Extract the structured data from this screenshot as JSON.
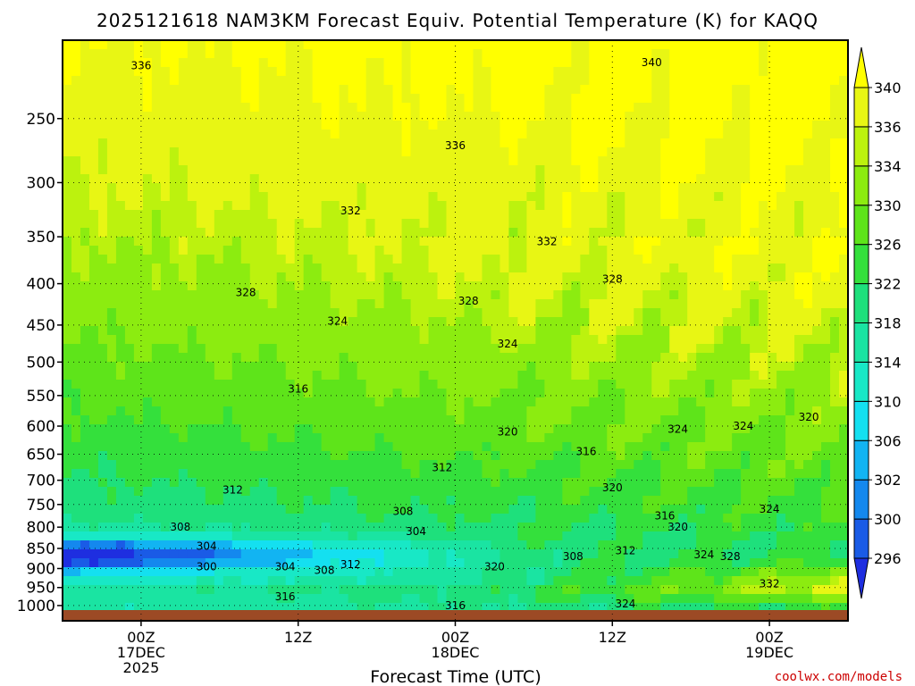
{
  "chart_data": {
    "type": "heatmap",
    "title": "2025121618 NAM3KM Forecast Equiv. Potential Temperature (K) for KAQQ",
    "xlabel": "Forecast Time (UTC)",
    "ylabel": "",
    "credit": "coolwx.com/models",
    "y_axis": {
      "scale": "log",
      "reversed": true,
      "range": [
        1013,
        200
      ],
      "ticks": [
        250,
        300,
        350,
        400,
        450,
        500,
        550,
        600,
        650,
        700,
        750,
        800,
        850,
        900,
        950,
        1000
      ],
      "tick_labels": [
        "250",
        "300",
        "350",
        "400",
        "450",
        "500",
        "550",
        "600",
        "650",
        "700",
        "750",
        "800",
        "850",
        "900",
        "950",
        "1000"
      ]
    },
    "x_axis": {
      "range_hours": [
        -6,
        54
      ],
      "ticks": [
        {
          "hour": 0,
          "lines": [
            "00Z",
            "17DEC",
            "2025"
          ]
        },
        {
          "hour": 12,
          "lines": [
            "12Z"
          ]
        },
        {
          "hour": 24,
          "lines": [
            "00Z",
            "18DEC"
          ]
        },
        {
          "hour": 36,
          "lines": [
            "12Z"
          ]
        },
        {
          "hour": 48,
          "lines": [
            "00Z",
            "19DEC"
          ]
        }
      ]
    },
    "grid": true,
    "colorbar": {
      "levels": [
        296,
        300,
        302,
        306,
        310,
        314,
        318,
        322,
        326,
        330,
        334,
        336,
        340
      ],
      "labels": [
        "296",
        "300",
        "302",
        "306",
        "310",
        "314",
        "318",
        "322",
        "326",
        "330",
        "334",
        "336",
        "340"
      ]
    },
    "contour_labels": [
      {
        "hour": 0,
        "p": 215,
        "value": "336"
      },
      {
        "hour": 39,
        "p": 213,
        "value": "340"
      },
      {
        "hour": 24,
        "p": 270,
        "value": "336"
      },
      {
        "hour": 16,
        "p": 325,
        "value": "332"
      },
      {
        "hour": 31,
        "p": 355,
        "value": "332"
      },
      {
        "hour": 8,
        "p": 410,
        "value": "328"
      },
      {
        "hour": 25,
        "p": 420,
        "value": "328"
      },
      {
        "hour": 36,
        "p": 395,
        "value": "328"
      },
      {
        "hour": 15,
        "p": 445,
        "value": "324"
      },
      {
        "hour": 28,
        "p": 475,
        "value": "324"
      },
      {
        "hour": 41,
        "p": 605,
        "value": "324"
      },
      {
        "hour": 46,
        "p": 600,
        "value": "324"
      },
      {
        "hour": 12,
        "p": 540,
        "value": "316"
      },
      {
        "hour": 28,
        "p": 610,
        "value": "320"
      },
      {
        "hour": 34,
        "p": 645,
        "value": "316"
      },
      {
        "hour": 36,
        "p": 715,
        "value": "320"
      },
      {
        "hour": 51,
        "p": 585,
        "value": "320"
      },
      {
        "hour": 23,
        "p": 675,
        "value": "312"
      },
      {
        "hour": 7,
        "p": 720,
        "value": "312"
      },
      {
        "hour": 20,
        "p": 765,
        "value": "308"
      },
      {
        "hour": 3,
        "p": 800,
        "value": "308"
      },
      {
        "hour": 21,
        "p": 810,
        "value": "304"
      },
      {
        "hour": 5,
        "p": 845,
        "value": "304"
      },
      {
        "hour": 5,
        "p": 895,
        "value": "300"
      },
      {
        "hour": 11,
        "p": 895,
        "value": "304"
      },
      {
        "hour": 14,
        "p": 905,
        "value": "308"
      },
      {
        "hour": 16,
        "p": 890,
        "value": "312"
      },
      {
        "hour": 27,
        "p": 895,
        "value": "320"
      },
      {
        "hour": 33,
        "p": 870,
        "value": "308"
      },
      {
        "hour": 37,
        "p": 855,
        "value": "312"
      },
      {
        "hour": 40,
        "p": 775,
        "value": "316"
      },
      {
        "hour": 41,
        "p": 800,
        "value": "320"
      },
      {
        "hour": 43,
        "p": 865,
        "value": "324"
      },
      {
        "hour": 45,
        "p": 870,
        "value": "328"
      },
      {
        "hour": 48,
        "p": 760,
        "value": "324"
      },
      {
        "hour": 48,
        "p": 940,
        "value": "332"
      },
      {
        "hour": 11,
        "p": 975,
        "value": "316"
      },
      {
        "hour": 24,
        "p": 1000,
        "value": "316"
      },
      {
        "hour": 37,
        "p": 995,
        "value": "324"
      }
    ]
  },
  "colors": {
    "ground": "#9c4a25",
    "grid": "#000000",
    "credit": "#cc0000",
    "palette": [
      "#1e2ee0",
      "#1a5be6",
      "#1488ee",
      "#12b4f2",
      "#14e0f0",
      "#18e8c6",
      "#1ae4a2",
      "#1ee07c",
      "#34e03c",
      "#5ee41a",
      "#8cec10",
      "#bcf20e",
      "#e8f614",
      "#ffff00"
    ]
  }
}
